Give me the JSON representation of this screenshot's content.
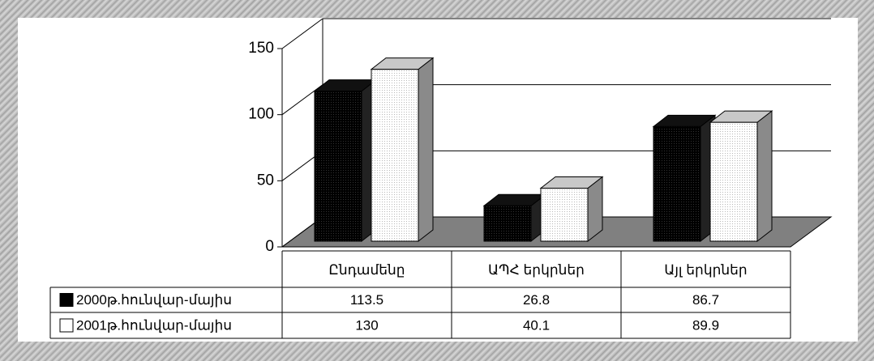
{
  "chart_data": {
    "type": "bar3d",
    "categories": [
      "Ընդամենը",
      "ԱՊՀ երկրներ",
      "Այլ երկրներ"
    ],
    "series": [
      {
        "name": "2000թ.հունվար-մայիս",
        "color": "#000000",
        "values": [
          113.5,
          26.8,
          86.7
        ]
      },
      {
        "name": "2001թ.հունվար-մայիս",
        "color": "#ffffff",
        "values": [
          130,
          40.1,
          89.9
        ]
      }
    ],
    "ylim": [
      0,
      150
    ],
    "yticks": [
      0,
      50,
      100,
      150
    ],
    "grid": true,
    "data_table": true
  }
}
